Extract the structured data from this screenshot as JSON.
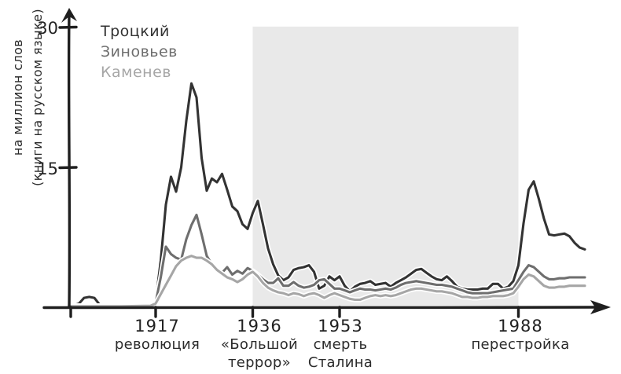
{
  "figure": {
    "kind": "hand-drawn ngram frequency chart",
    "background_color": "#ffffff",
    "text_color": "#2b2b2b",
    "axis_color": "#1f1f1f"
  },
  "chart_data": {
    "type": "line",
    "title": "",
    "ylabel_lines": [
      "на миллион слов",
      "(книги на русском языке)"
    ],
    "xlim": [
      1900,
      2002
    ],
    "ylim": [
      0,
      31
    ],
    "grid": false,
    "legend_position": "top-left",
    "y_ticks": [
      {
        "value": 30,
        "label": "30"
      },
      {
        "value": 15,
        "label": "15"
      }
    ],
    "x_ticks": [
      {
        "year": 1917,
        "label": "1917",
        "caption_lines": [
          "революция"
        ]
      },
      {
        "year": 1936,
        "label": "1936",
        "caption_lines": [
          "«Большой",
          "террор»"
        ]
      },
      {
        "year": 1953,
        "label": "1953",
        "caption_lines": [
          "смерть",
          "Сталина"
        ]
      },
      {
        "year": 1988,
        "label": "1988",
        "caption_lines": [
          "перестройка"
        ]
      }
    ],
    "shaded_region": {
      "from_year": 1936,
      "to_year": 1988,
      "color": "#e9e9e9"
    },
    "series": [
      {
        "name": "Троцкий",
        "color": "#333333",
        "points": [
          [
            1900,
            0.2
          ],
          [
            1901,
            0.2
          ],
          [
            1902,
            0.4
          ],
          [
            1903,
            1.0
          ],
          [
            1904,
            1.1
          ],
          [
            1905,
            1.0
          ],
          [
            1906,
            0.3
          ],
          [
            1908,
            0.2
          ],
          [
            1912,
            0.2
          ],
          [
            1916,
            0.2
          ],
          [
            1917,
            0.6
          ],
          [
            1918,
            5.0
          ],
          [
            1919,
            11.0
          ],
          [
            1920,
            14.0
          ],
          [
            1921,
            12.4
          ],
          [
            1922,
            15.0
          ],
          [
            1923,
            20.0
          ],
          [
            1924,
            24.0
          ],
          [
            1925,
            22.5
          ],
          [
            1926,
            16.0
          ],
          [
            1927,
            12.5
          ],
          [
            1928,
            13.8
          ],
          [
            1929,
            13.4
          ],
          [
            1930,
            14.3
          ],
          [
            1931,
            12.6
          ],
          [
            1932,
            10.8
          ],
          [
            1933,
            10.3
          ],
          [
            1934,
            8.9
          ],
          [
            1935,
            8.4
          ],
          [
            1936,
            10.1
          ],
          [
            1937,
            11.4
          ],
          [
            1938,
            8.9
          ],
          [
            1939,
            6.3
          ],
          [
            1940,
            4.6
          ],
          [
            1941,
            3.4
          ],
          [
            1942,
            2.9
          ],
          [
            1943,
            3.2
          ],
          [
            1944,
            4.0
          ],
          [
            1945,
            4.2
          ],
          [
            1946,
            4.3
          ],
          [
            1947,
            4.5
          ],
          [
            1948,
            3.8
          ],
          [
            1949,
            2.0
          ],
          [
            1950,
            2.3
          ],
          [
            1951,
            3.3
          ],
          [
            1952,
            2.9
          ],
          [
            1953,
            3.3
          ],
          [
            1954,
            2.3
          ],
          [
            1955,
            1.7
          ],
          [
            1956,
            2.2
          ],
          [
            1957,
            2.5
          ],
          [
            1958,
            2.6
          ],
          [
            1959,
            2.8
          ],
          [
            1960,
            2.4
          ],
          [
            1961,
            2.5
          ],
          [
            1962,
            2.6
          ],
          [
            1963,
            2.2
          ],
          [
            1964,
            2.6
          ],
          [
            1965,
            2.9
          ],
          [
            1966,
            3.2
          ],
          [
            1967,
            3.6
          ],
          [
            1968,
            4.0
          ],
          [
            1969,
            4.1
          ],
          [
            1970,
            3.7
          ],
          [
            1971,
            3.3
          ],
          [
            1972,
            3.0
          ],
          [
            1973,
            2.9
          ],
          [
            1974,
            3.3
          ],
          [
            1975,
            2.8
          ],
          [
            1976,
            2.2
          ],
          [
            1977,
            2.0
          ],
          [
            1978,
            1.9
          ],
          [
            1979,
            1.9
          ],
          [
            1980,
            1.9
          ],
          [
            1981,
            2.0
          ],
          [
            1982,
            2.0
          ],
          [
            1983,
            2.5
          ],
          [
            1984,
            2.5
          ],
          [
            1985,
            2.0
          ],
          [
            1986,
            2.2
          ],
          [
            1987,
            2.8
          ],
          [
            1988,
            4.5
          ],
          [
            1989,
            9.0
          ],
          [
            1990,
            12.6
          ],
          [
            1991,
            13.5
          ],
          [
            1992,
            11.6
          ],
          [
            1993,
            9.5
          ],
          [
            1994,
            7.8
          ],
          [
            1995,
            7.7
          ],
          [
            1996,
            7.8
          ],
          [
            1997,
            7.9
          ],
          [
            1998,
            7.6
          ],
          [
            1999,
            6.9
          ],
          [
            2000,
            6.4
          ],
          [
            2001,
            6.2
          ]
        ]
      },
      {
        "name": "Зиновьев",
        "color": "#6e6e6e",
        "points": [
          [
            1900,
            0.15
          ],
          [
            1905,
            0.15
          ],
          [
            1910,
            0.15
          ],
          [
            1916,
            0.2
          ],
          [
            1917,
            0.5
          ],
          [
            1918,
            3.2
          ],
          [
            1919,
            6.5
          ],
          [
            1920,
            5.7
          ],
          [
            1921,
            5.3
          ],
          [
            1922,
            5.1
          ],
          [
            1923,
            7.3
          ],
          [
            1924,
            8.8
          ],
          [
            1925,
            9.9
          ],
          [
            1926,
            7.8
          ],
          [
            1927,
            5.5
          ],
          [
            1928,
            4.6
          ],
          [
            1929,
            4.1
          ],
          [
            1930,
            3.7
          ],
          [
            1931,
            4.3
          ],
          [
            1932,
            3.5
          ],
          [
            1933,
            3.9
          ],
          [
            1934,
            3.6
          ],
          [
            1935,
            4.2
          ],
          [
            1936,
            3.9
          ],
          [
            1937,
            3.5
          ],
          [
            1938,
            3.0
          ],
          [
            1939,
            2.6
          ],
          [
            1940,
            2.6
          ],
          [
            1941,
            3.1
          ],
          [
            1942,
            2.3
          ],
          [
            1943,
            2.3
          ],
          [
            1944,
            2.7
          ],
          [
            1945,
            2.3
          ],
          [
            1946,
            2.1
          ],
          [
            1947,
            2.2
          ],
          [
            1948,
            2.4
          ],
          [
            1949,
            2.9
          ],
          [
            1950,
            3.0
          ],
          [
            1951,
            2.5
          ],
          [
            1952,
            2.0
          ],
          [
            1953,
            2.0
          ],
          [
            1954,
            1.8
          ],
          [
            1955,
            1.6
          ],
          [
            1956,
            1.8
          ],
          [
            1957,
            2.0
          ],
          [
            1958,
            1.9
          ],
          [
            1959,
            1.9
          ],
          [
            1960,
            1.8
          ],
          [
            1961,
            1.9
          ],
          [
            1962,
            2.0
          ],
          [
            1963,
            1.9
          ],
          [
            1964,
            2.1
          ],
          [
            1965,
            2.4
          ],
          [
            1966,
            2.6
          ],
          [
            1967,
            2.7
          ],
          [
            1968,
            2.8
          ],
          [
            1969,
            2.7
          ],
          [
            1970,
            2.6
          ],
          [
            1971,
            2.5
          ],
          [
            1972,
            2.4
          ],
          [
            1973,
            2.4
          ],
          [
            1974,
            2.3
          ],
          [
            1975,
            2.2
          ],
          [
            1976,
            2.0
          ],
          [
            1977,
            1.8
          ],
          [
            1978,
            1.6
          ],
          [
            1979,
            1.5
          ],
          [
            1980,
            1.5
          ],
          [
            1981,
            1.5
          ],
          [
            1982,
            1.5
          ],
          [
            1983,
            1.6
          ],
          [
            1984,
            1.7
          ],
          [
            1985,
            1.8
          ],
          [
            1986,
            1.9
          ],
          [
            1987,
            2.0
          ],
          [
            1988,
            2.9
          ],
          [
            1989,
            3.8
          ],
          [
            1990,
            4.5
          ],
          [
            1991,
            4.3
          ],
          [
            1992,
            3.8
          ],
          [
            1993,
            3.3
          ],
          [
            1994,
            3.0
          ],
          [
            1995,
            3.0
          ],
          [
            1996,
            3.1
          ],
          [
            1997,
            3.1
          ],
          [
            1998,
            3.2
          ],
          [
            1999,
            3.2
          ],
          [
            2000,
            3.2
          ],
          [
            2001,
            3.2
          ]
        ]
      },
      {
        "name": "Каменев",
        "color": "#a6a6a6",
        "points": [
          [
            1900,
            0.1
          ],
          [
            1910,
            0.1
          ],
          [
            1916,
            0.15
          ],
          [
            1917,
            0.4
          ],
          [
            1918,
            1.4
          ],
          [
            1919,
            2.4
          ],
          [
            1920,
            3.4
          ],
          [
            1921,
            4.4
          ],
          [
            1922,
            5.0
          ],
          [
            1923,
            5.3
          ],
          [
            1924,
            5.5
          ],
          [
            1925,
            5.3
          ],
          [
            1926,
            5.3
          ],
          [
            1927,
            5.0
          ],
          [
            1928,
            4.6
          ],
          [
            1929,
            4.0
          ],
          [
            1930,
            3.6
          ],
          [
            1931,
            3.2
          ],
          [
            1932,
            3.0
          ],
          [
            1933,
            2.7
          ],
          [
            1934,
            3.0
          ],
          [
            1935,
            3.5
          ],
          [
            1936,
            3.8
          ],
          [
            1937,
            3.3
          ],
          [
            1938,
            2.6
          ],
          [
            1939,
            2.1
          ],
          [
            1940,
            1.8
          ],
          [
            1941,
            1.6
          ],
          [
            1942,
            1.5
          ],
          [
            1943,
            1.3
          ],
          [
            1944,
            1.5
          ],
          [
            1945,
            1.4
          ],
          [
            1946,
            1.2
          ],
          [
            1947,
            1.4
          ],
          [
            1948,
            1.5
          ],
          [
            1949,
            1.3
          ],
          [
            1950,
            1.0
          ],
          [
            1951,
            1.3
          ],
          [
            1952,
            1.5
          ],
          [
            1953,
            1.3
          ],
          [
            1954,
            1.1
          ],
          [
            1955,
            0.9
          ],
          [
            1956,
            0.8
          ],
          [
            1957,
            0.8
          ],
          [
            1958,
            1.0
          ],
          [
            1959,
            1.2
          ],
          [
            1960,
            1.3
          ],
          [
            1961,
            1.2
          ],
          [
            1962,
            1.3
          ],
          [
            1963,
            1.2
          ],
          [
            1964,
            1.3
          ],
          [
            1965,
            1.5
          ],
          [
            1966,
            1.7
          ],
          [
            1967,
            1.9
          ],
          [
            1968,
            2.0
          ],
          [
            1969,
            2.0
          ],
          [
            1970,
            1.9
          ],
          [
            1971,
            1.8
          ],
          [
            1972,
            1.7
          ],
          [
            1973,
            1.7
          ],
          [
            1974,
            1.6
          ],
          [
            1975,
            1.5
          ],
          [
            1976,
            1.3
          ],
          [
            1977,
            1.1
          ],
          [
            1978,
            1.1
          ],
          [
            1979,
            1.0
          ],
          [
            1980,
            1.0
          ],
          [
            1981,
            1.1
          ],
          [
            1982,
            1.1
          ],
          [
            1983,
            1.2
          ],
          [
            1984,
            1.2
          ],
          [
            1985,
            1.2
          ],
          [
            1986,
            1.3
          ],
          [
            1987,
            1.5
          ],
          [
            1988,
            2.2
          ],
          [
            1989,
            3.0
          ],
          [
            1990,
            3.5
          ],
          [
            1991,
            3.3
          ],
          [
            1992,
            2.8
          ],
          [
            1993,
            2.3
          ],
          [
            1994,
            2.1
          ],
          [
            1995,
            2.1
          ],
          [
            1996,
            2.2
          ],
          [
            1997,
            2.2
          ],
          [
            1998,
            2.3
          ],
          [
            1999,
            2.3
          ],
          [
            2000,
            2.3
          ],
          [
            2001,
            2.3
          ]
        ]
      }
    ]
  }
}
